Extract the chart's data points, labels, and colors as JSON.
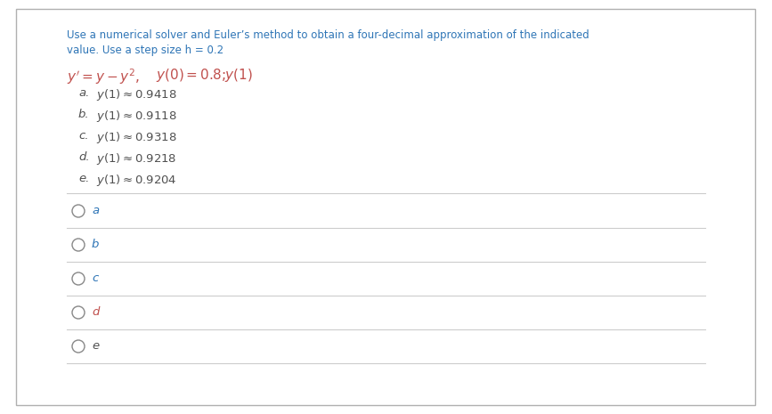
{
  "bg_color": "#ffffff",
  "border_color": "#b0b0b0",
  "title_line1": "Use a numerical solver and Euler’s method to obtain a four-decimal approximation of the indicated",
  "title_line2": "value. Use a step size h = 0.2",
  "title_color": "#2e75b6",
  "eq_color": "#c0504d",
  "text_color": "#505050",
  "separator_color": "#cccccc",
  "radio_circle_color": "#888888",
  "radio_label_colors": [
    "#2e75b6",
    "#2e75b6",
    "#2e75b6",
    "#c0504d",
    "#505050"
  ],
  "option_labels": [
    "a.",
    "b.",
    "c.",
    "d.",
    "e."
  ],
  "option_values": [
    "0.9418",
    "0.9118",
    "0.9318",
    "0.9218",
    "0.9204"
  ],
  "radio_labels": [
    "a",
    "b",
    "c",
    "d",
    "e"
  ]
}
